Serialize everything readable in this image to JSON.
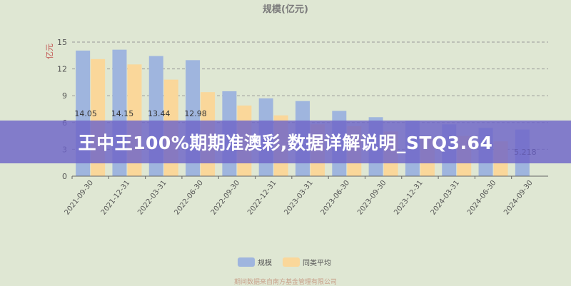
{
  "banner": {
    "headline": "王中王100%期期准澳彩,数据详解说明_STQ3.64"
  },
  "watermark": {
    "text": "期间数据来自南方基金管理有限公司"
  },
  "chart_data": {
    "type": "bar",
    "title": "规模(亿元)",
    "ylabel": "亿元",
    "xlabel": "",
    "ylim": [
      0,
      15
    ],
    "yticks": [
      0,
      3,
      6,
      9,
      12,
      15
    ],
    "grid": true,
    "legend_position": "bottom",
    "categories": [
      "2021-09-30",
      "2021-12-31",
      "2022-03-31",
      "2022-06-30",
      "2022-09-30",
      "2022-12-31",
      "2023-03-31",
      "2023-06-30",
      "2023-09-30",
      "2023-12-31",
      "2024-03-31",
      "2024-06-30",
      "2024-09-30"
    ],
    "series": [
      {
        "name": "规模",
        "color": "#9fb5de",
        "values": [
          14.05,
          14.15,
          13.44,
          12.98,
          9.5,
          8.7,
          8.4,
          7.3,
          6.6,
          6.2,
          5.8,
          5.4,
          5.218
        ],
        "labels": [
          "14.05",
          "14.15",
          "13.44",
          "12.98",
          "",
          "",
          "",
          "",
          "",
          "",
          "",
          "",
          "5.218"
        ]
      },
      {
        "name": "同类平均",
        "color": "#fad79a",
        "values": [
          13.1,
          12.5,
          10.8,
          9.4,
          7.9,
          6.8,
          5.8,
          5.6,
          5.0,
          4.2,
          4.5,
          3.9,
          null
        ]
      }
    ]
  }
}
